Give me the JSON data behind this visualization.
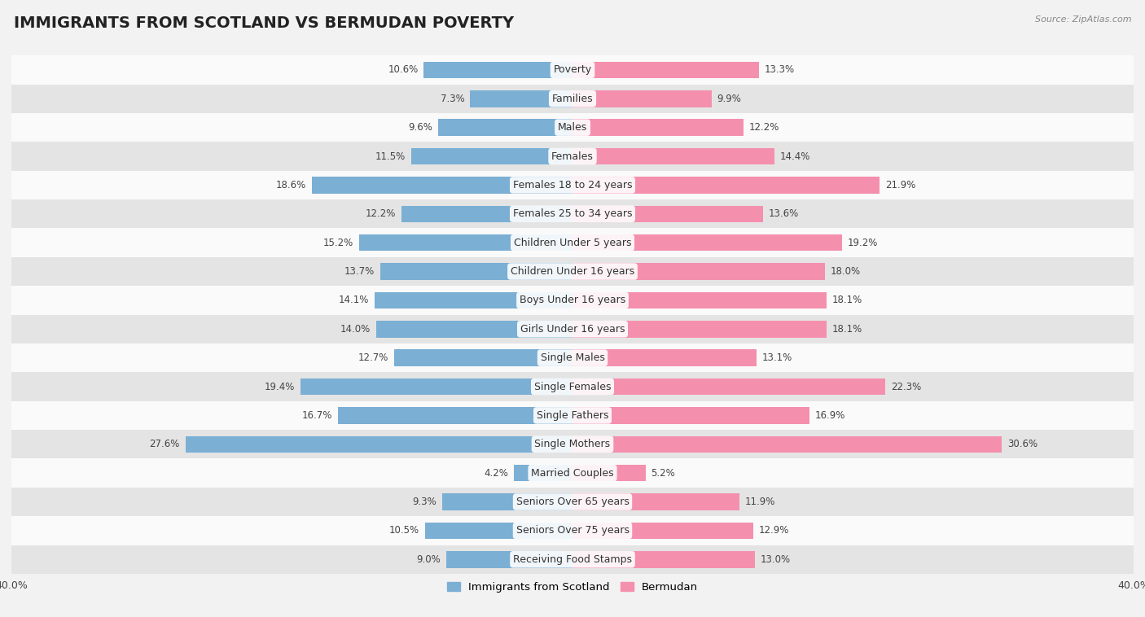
{
  "title": "IMMIGRANTS FROM SCOTLAND VS BERMUDAN POVERTY",
  "source": "Source: ZipAtlas.com",
  "categories": [
    "Poverty",
    "Families",
    "Males",
    "Females",
    "Females 18 to 24 years",
    "Females 25 to 34 years",
    "Children Under 5 years",
    "Children Under 16 years",
    "Boys Under 16 years",
    "Girls Under 16 years",
    "Single Males",
    "Single Females",
    "Single Fathers",
    "Single Mothers",
    "Married Couples",
    "Seniors Over 65 years",
    "Seniors Over 75 years",
    "Receiving Food Stamps"
  ],
  "scotland_values": [
    10.6,
    7.3,
    9.6,
    11.5,
    18.6,
    12.2,
    15.2,
    13.7,
    14.1,
    14.0,
    12.7,
    19.4,
    16.7,
    27.6,
    4.2,
    9.3,
    10.5,
    9.0
  ],
  "bermudan_values": [
    13.3,
    9.9,
    12.2,
    14.4,
    21.9,
    13.6,
    19.2,
    18.0,
    18.1,
    18.1,
    13.1,
    22.3,
    16.9,
    30.6,
    5.2,
    11.9,
    12.9,
    13.0
  ],
  "scotland_color": "#7bafd4",
  "bermudan_color": "#f490ae",
  "background_color": "#f2f2f2",
  "row_bg_light": "#fafafa",
  "row_bg_dark": "#e4e4e4",
  "xlim": 40.0,
  "bar_height": 0.58,
  "legend_labels": [
    "Immigrants from Scotland",
    "Bermudan"
  ],
  "title_fontsize": 14,
  "label_fontsize": 9,
  "value_fontsize": 8.5,
  "axis_label_fontsize": 9
}
